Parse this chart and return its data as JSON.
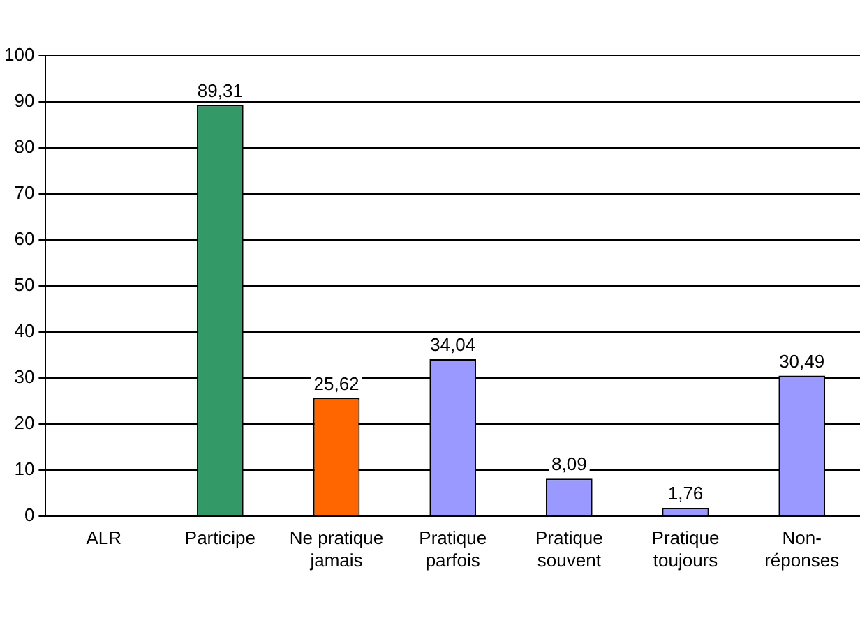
{
  "chart_data": {
    "type": "bar",
    "categories": [
      "ALR",
      "Participe",
      "Ne pratique jamais",
      "Pratique parfois",
      "Pratique souvent",
      "Pratique toujours",
      "Non-réponses"
    ],
    "values": [
      null,
      89.31,
      25.62,
      34.04,
      8.09,
      1.76,
      30.49
    ],
    "colors": [
      "#9999ff",
      "#339966",
      "#ff6600",
      "#9999ff",
      "#9999ff",
      "#9999ff",
      "#9999ff"
    ],
    "ylim": [
      0,
      100
    ],
    "yticks": [
      0,
      10,
      20,
      30,
      40,
      50,
      60,
      70,
      80,
      90,
      100
    ],
    "value_labels": [
      null,
      "89,31",
      "25,62",
      "34,04",
      "8,09",
      "1,76",
      "30,49"
    ],
    "grid": "y",
    "legend": false
  }
}
